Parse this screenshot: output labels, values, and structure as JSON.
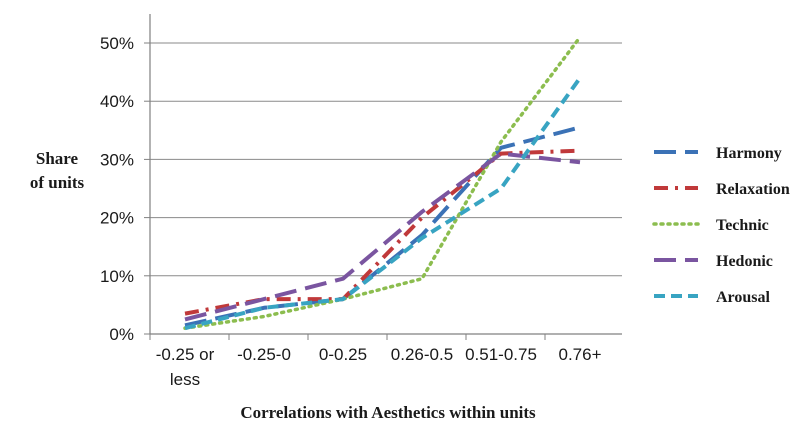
{
  "chart_data": {
    "type": "line",
    "title": "",
    "xlabel": "Correlations with Aesthetics within units",
    "ylabel_lines": [
      "Share",
      "of units"
    ],
    "categories": [
      [
        "-0.25 or",
        "less"
      ],
      [
        "-0.25-0"
      ],
      [
        "0-0.25"
      ],
      [
        "0.26-0.5"
      ],
      [
        "0.51-0.75"
      ],
      [
        "0.76+"
      ]
    ],
    "ylim": [
      0,
      50
    ],
    "yticks": [
      0,
      10,
      20,
      30,
      40,
      50
    ],
    "ytick_suffix": "%",
    "grid": "horizontal",
    "legend_position": "right",
    "series": [
      {
        "name": "Harmony",
        "color": "#3b72b6",
        "dash": "long-dash",
        "values": [
          1.5,
          4.5,
          6.0,
          17.0,
          32.0,
          35.5
        ]
      },
      {
        "name": "Relaxation",
        "color": "#c0393a",
        "dash": "dash-dot",
        "values": [
          3.5,
          6.0,
          6.0,
          20.0,
          31.0,
          31.5
        ]
      },
      {
        "name": "Technic",
        "color": "#8cbd4f",
        "dash": "dotted",
        "values": [
          1.0,
          3.0,
          6.0,
          9.5,
          33.0,
          51.0
        ]
      },
      {
        "name": "Hedonic",
        "color": "#7a55a0",
        "dash": "long-dash",
        "values": [
          2.5,
          6.0,
          9.5,
          21.0,
          31.0,
          29.5
        ]
      },
      {
        "name": "Arousal",
        "color": "#38a4c2",
        "dash": "short-dash",
        "values": [
          1.0,
          4.5,
          6.0,
          16.5,
          25.0,
          44.0
        ]
      }
    ]
  }
}
